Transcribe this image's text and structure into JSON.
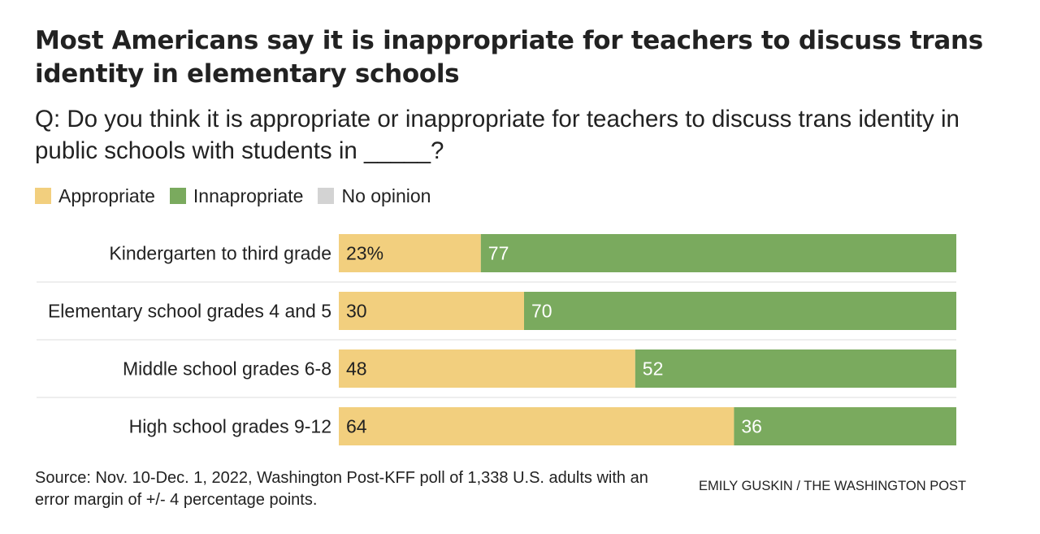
{
  "chart_data": {
    "type": "bar",
    "orientation": "horizontal",
    "stacked": true,
    "title": "Most Americans say it is inappropriate for teachers to discuss trans identity in elementary schools",
    "subtitle": "Q: Do you think it is appropriate or inappropriate for teachers to discuss trans identity in public schools with students in _____?",
    "categories": [
      "Kindergarten to third grade",
      "Elementary school grades 4 and 5",
      "Middle school grades 6-8",
      "High school grades 9-12"
    ],
    "series": [
      {
        "name": "Appropriate",
        "color": "#f2cf7e",
        "values": [
          23,
          30,
          48,
          64
        ],
        "labels": [
          "23%",
          "30",
          "48",
          "64"
        ]
      },
      {
        "name": "Innapropriate",
        "color": "#7aaa5e",
        "values": [
          77,
          70,
          52,
          36
        ],
        "labels": [
          "77",
          "70",
          "52",
          "36"
        ]
      },
      {
        "name": "No opinion",
        "color": "#d3d3d3",
        "values": [
          0,
          0,
          0,
          0
        ],
        "labels": [
          "",
          "",
          "",
          ""
        ]
      }
    ],
    "xlim": [
      0,
      100
    ],
    "legend_position": "top-left",
    "grid": false,
    "source": "Source: Nov. 10-Dec. 1, 2022, Washington Post-KFF poll of 1,338 U.S. adults with an error margin of +/- 4 percentage points.",
    "credit": "EMILY GUSKIN / THE WASHINGTON POST"
  }
}
